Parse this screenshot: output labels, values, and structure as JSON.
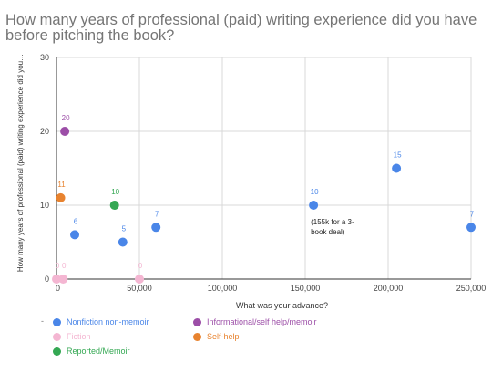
{
  "chart_data": {
    "type": "scatter",
    "title": "How many years of professional (paid) writing experience did you have before pitching the book?",
    "xlabel": "What was your advance?",
    "ylabel": "How many years of professional (paid) writing experience did you…",
    "xlim": [
      0,
      250000
    ],
    "ylim": [
      0,
      30
    ],
    "xticks": [
      0,
      50000,
      100000,
      150000,
      200000,
      250000
    ],
    "xtick_labels": [
      "0",
      "50,000",
      "100,000",
      "150,000",
      "200,000",
      "250,000"
    ],
    "yticks": [
      0,
      10,
      20,
      30
    ],
    "ytick_labels": [
      "0",
      "10",
      "20",
      "30"
    ],
    "grid": true,
    "legend_position": "bottom",
    "series": [
      {
        "name": "Nonfiction non-memoir",
        "color": "#4a86e8",
        "points": [
          {
            "x": 11000,
            "y": 6,
            "label": "6"
          },
          {
            "x": 40000,
            "y": 5,
            "label": "5"
          },
          {
            "x": 60000,
            "y": 7,
            "label": "7"
          },
          {
            "x": 155000,
            "y": 10,
            "label": "10"
          },
          {
            "x": 205000,
            "y": 15,
            "label": "15"
          },
          {
            "x": 250000,
            "y": 7,
            "label": "7"
          }
        ]
      },
      {
        "name": "Fiction",
        "color": "#f4b6d2",
        "points": [
          {
            "x": 0,
            "y": 0,
            "label": "0"
          },
          {
            "x": 4000,
            "y": 0,
            "label": "0"
          },
          {
            "x": 50000,
            "y": 0,
            "label": "0"
          }
        ]
      },
      {
        "name": "Reported/Memoir",
        "color": "#34a853",
        "points": [
          {
            "x": 35000,
            "y": 10,
            "label": "10"
          }
        ]
      },
      {
        "name": "Informational/self help/memoir",
        "color": "#9c4ea7",
        "points": [
          {
            "x": 5000,
            "y": 20,
            "label": "20"
          }
        ]
      },
      {
        "name": "Self-help",
        "color": "#e8832f",
        "points": [
          {
            "x": 2500,
            "y": 11,
            "label": "11"
          }
        ]
      }
    ],
    "annotations": [
      {
        "x": 155000,
        "y": 10,
        "lines": [
          "(155k for a 3-",
          "book deal)"
        ]
      }
    ]
  },
  "legend": {
    "bullet": "-"
  }
}
